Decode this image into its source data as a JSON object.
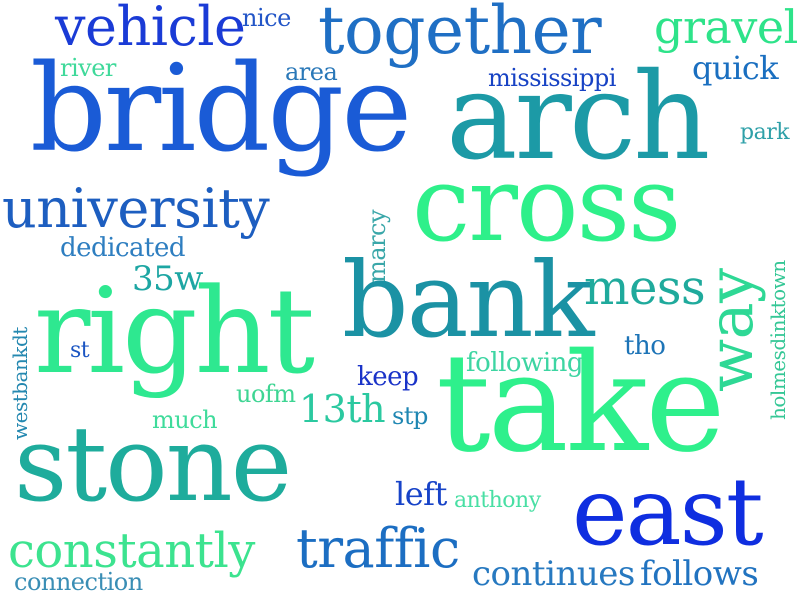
{
  "words": [
    {
      "text": "vehicle",
      "color": "#1a3bd6"
    },
    {
      "text": "nice",
      "color": "#2255c7"
    },
    {
      "text": "together",
      "color": "#1f6fc4"
    },
    {
      "text": "gravel",
      "color": "#2ee38a"
    },
    {
      "text": "river",
      "color": "#3fd99a"
    },
    {
      "text": "area",
      "color": "#2a78b8"
    },
    {
      "text": "mississippi",
      "color": "#1742c4"
    },
    {
      "text": "quick",
      "color": "#1a6fc0"
    },
    {
      "text": "bridge",
      "color": "#1a5bd6"
    },
    {
      "text": "arch",
      "color": "#1c9aa6"
    },
    {
      "text": "park",
      "color": "#2ea0a8"
    },
    {
      "text": "university",
      "color": "#1d5ec0"
    },
    {
      "text": "cross",
      "color": "#2ef08a"
    },
    {
      "text": "dedicated",
      "color": "#2e7ec0"
    },
    {
      "text": "marcy",
      "color": "#3aa7a9"
    },
    {
      "text": "35w",
      "color": "#1da6a3"
    },
    {
      "text": "bank",
      "color": "#1b92a4"
    },
    {
      "text": "mess",
      "color": "#1faa9c"
    },
    {
      "text": "way",
      "color": "#2ed895"
    },
    {
      "text": "right",
      "color": "#2ee890"
    },
    {
      "text": "westbankdt",
      "color": "#2488b0"
    },
    {
      "text": "st",
      "color": "#1b55c2"
    },
    {
      "text": "tho",
      "color": "#1d74b7"
    },
    {
      "text": "holmesdinktown",
      "color": "#35c796"
    },
    {
      "text": "following",
      "color": "#3dd5a2"
    },
    {
      "text": "keep",
      "color": "#1a33c8"
    },
    {
      "text": "uofm",
      "color": "#3ed593"
    },
    {
      "text": "13th",
      "color": "#2bc9a0"
    },
    {
      "text": "much",
      "color": "#3fdb9b"
    },
    {
      "text": "stp",
      "color": "#1e86b2"
    },
    {
      "text": "take",
      "color": "#2ef08c"
    },
    {
      "text": "stone",
      "color": "#1eac9c"
    },
    {
      "text": "left",
      "color": "#1743c8"
    },
    {
      "text": "anthony",
      "color": "#49dfa4"
    },
    {
      "text": "east",
      "color": "#0f2ee0"
    },
    {
      "text": "constantly",
      "color": "#3ce38f"
    },
    {
      "text": "traffic",
      "color": "#1c6ec2"
    },
    {
      "text": "continues",
      "color": "#2779c0"
    },
    {
      "text": "follows",
      "color": "#2173c0"
    },
    {
      "text": "connection",
      "color": "#3a8eb5"
    }
  ]
}
